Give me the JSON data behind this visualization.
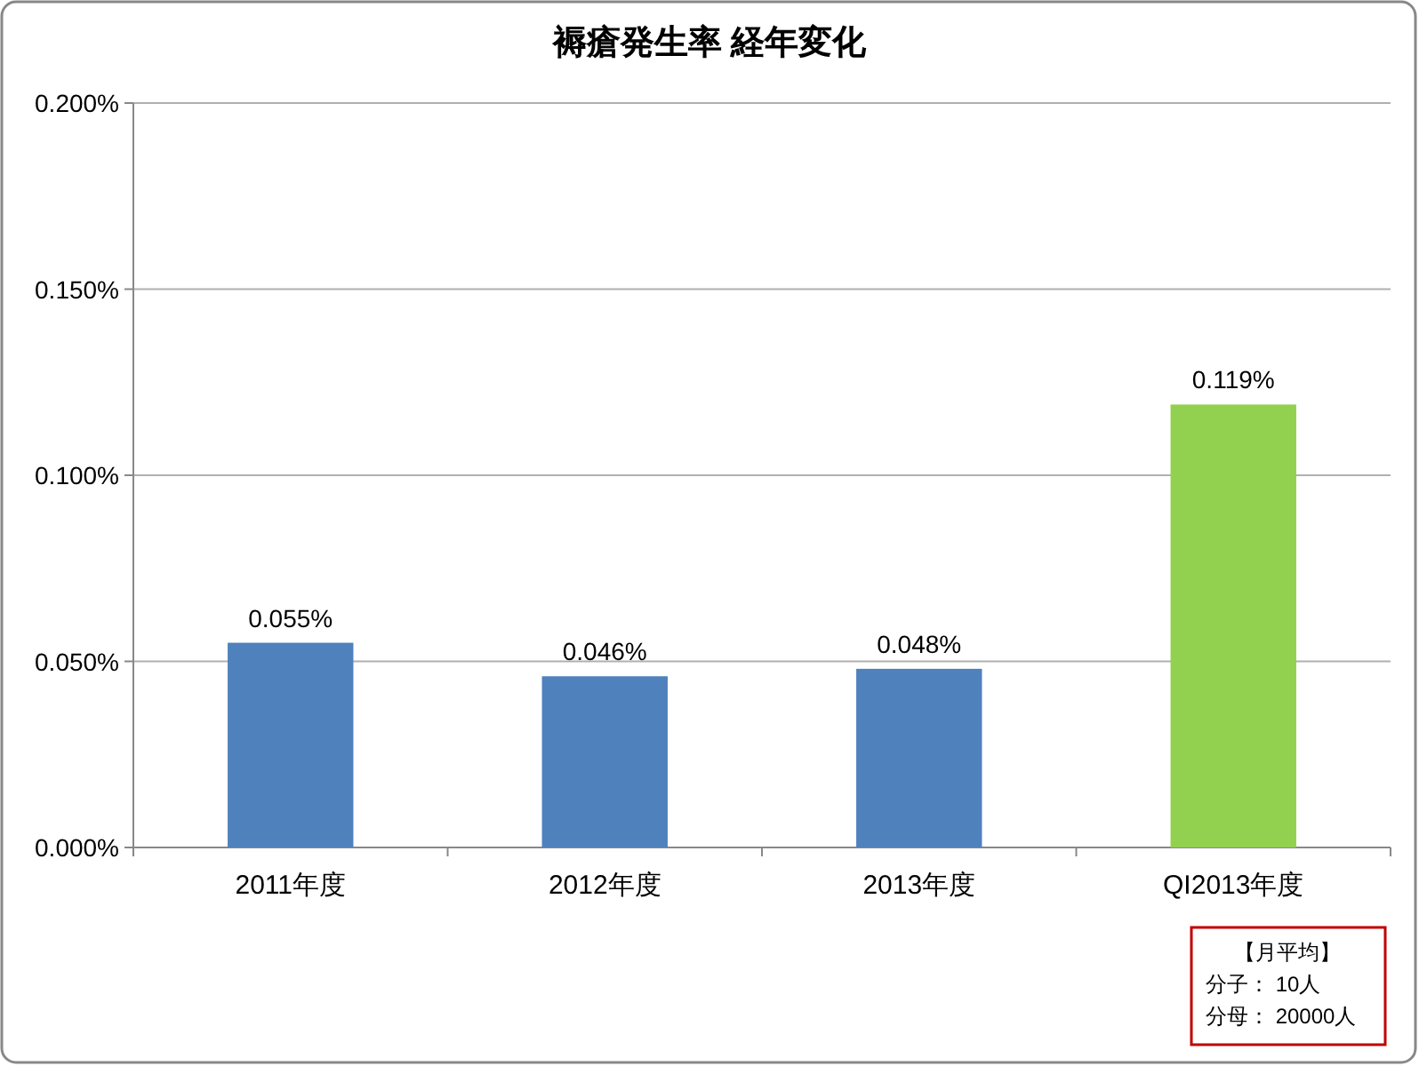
{
  "chart_data": {
    "type": "bar",
    "title": "褥瘡発生率  経年変化",
    "categories": [
      "2011年度",
      "2012年度",
      "2013年度",
      "QI2013年度"
    ],
    "values": [
      0.055,
      0.046,
      0.048,
      0.119
    ],
    "colors": [
      "#4f81bd",
      "#4f81bd",
      "#4f81bd",
      "#92d050"
    ],
    "value_labels": [
      "0.055%",
      "0.046%",
      "0.048%",
      "0.119%"
    ],
    "ylim": [
      0,
      0.2
    ],
    "yticks": [
      {
        "value": 0,
        "label": "0.000%"
      },
      {
        "value": 0.05,
        "label": "0.050%"
      },
      {
        "value": 0.1,
        "label": "0.100%"
      },
      {
        "value": 0.15,
        "label": "0.150%"
      },
      {
        "value": 0.2,
        "label": "0.200%"
      }
    ],
    "grid": "y",
    "annotations": [
      "【月平均】",
      "分子：  10人",
      "分母：  20000人"
    ]
  }
}
